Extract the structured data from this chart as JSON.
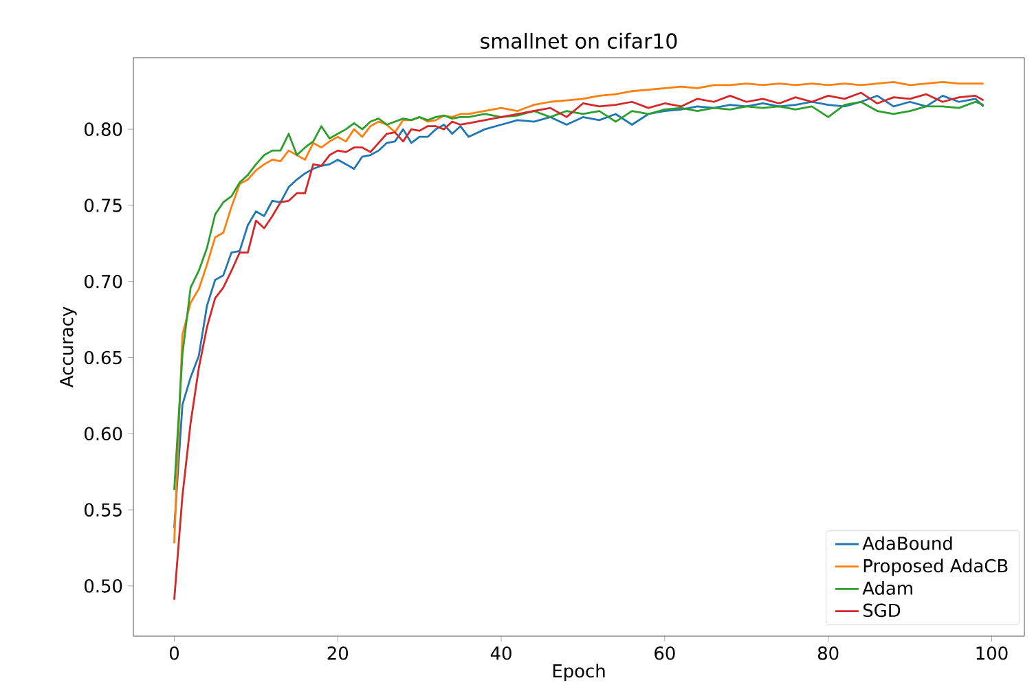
{
  "chart_data": {
    "type": "line",
    "title": "smallnet on cifar10",
    "xlabel": "Epoch",
    "ylabel": "Accuracy",
    "x": [
      0,
      1,
      2,
      3,
      4,
      5,
      6,
      7,
      8,
      9,
      10,
      11,
      12,
      13,
      14,
      15,
      16,
      17,
      18,
      19,
      20,
      21,
      22,
      23,
      24,
      25,
      26,
      27,
      28,
      29,
      30,
      31,
      32,
      33,
      34,
      35,
      36,
      38,
      40,
      42,
      44,
      46,
      48,
      50,
      52,
      54,
      56,
      58,
      60,
      62,
      64,
      66,
      68,
      70,
      72,
      74,
      76,
      78,
      80,
      82,
      84,
      86,
      88,
      90,
      92,
      94,
      96,
      98,
      99
    ],
    "series": [
      {
        "name": "AdaBound",
        "color": "#1f77b4",
        "values": [
          0.538,
          0.619,
          0.637,
          0.651,
          0.684,
          0.701,
          0.704,
          0.719,
          0.72,
          0.737,
          0.746,
          0.743,
          0.753,
          0.752,
          0.762,
          0.767,
          0.771,
          0.774,
          0.776,
          0.777,
          0.78,
          0.777,
          0.774,
          0.782,
          0.783,
          0.786,
          0.791,
          0.792,
          0.8,
          0.791,
          0.795,
          0.795,
          0.8,
          0.803,
          0.797,
          0.802,
          0.795,
          0.8,
          0.803,
          0.806,
          0.805,
          0.808,
          0.803,
          0.808,
          0.806,
          0.81,
          0.803,
          0.81,
          0.812,
          0.813,
          0.815,
          0.814,
          0.816,
          0.815,
          0.817,
          0.815,
          0.816,
          0.818,
          0.816,
          0.815,
          0.818,
          0.822,
          0.815,
          0.818,
          0.815,
          0.822,
          0.818,
          0.82,
          0.815
        ]
      },
      {
        "name": "Proposed AdaCB",
        "color": "#ff7f0e",
        "values": [
          0.528,
          0.665,
          0.686,
          0.695,
          0.711,
          0.729,
          0.732,
          0.749,
          0.764,
          0.767,
          0.773,
          0.777,
          0.78,
          0.779,
          0.786,
          0.783,
          0.78,
          0.791,
          0.788,
          0.792,
          0.795,
          0.792,
          0.8,
          0.795,
          0.802,
          0.805,
          0.803,
          0.798,
          0.806,
          0.806,
          0.808,
          0.805,
          0.806,
          0.809,
          0.808,
          0.81,
          0.81,
          0.812,
          0.814,
          0.812,
          0.816,
          0.818,
          0.819,
          0.82,
          0.822,
          0.823,
          0.825,
          0.826,
          0.827,
          0.828,
          0.827,
          0.829,
          0.829,
          0.83,
          0.829,
          0.83,
          0.829,
          0.83,
          0.829,
          0.83,
          0.829,
          0.83,
          0.831,
          0.829,
          0.83,
          0.831,
          0.83,
          0.83,
          0.83
        ]
      },
      {
        "name": "Adam",
        "color": "#2ca02c",
        "values": [
          0.563,
          0.652,
          0.696,
          0.707,
          0.722,
          0.744,
          0.752,
          0.756,
          0.765,
          0.77,
          0.777,
          0.783,
          0.786,
          0.786,
          0.797,
          0.783,
          0.788,
          0.792,
          0.802,
          0.794,
          0.797,
          0.8,
          0.804,
          0.8,
          0.805,
          0.807,
          0.803,
          0.805,
          0.807,
          0.806,
          0.808,
          0.806,
          0.808,
          0.809,
          0.807,
          0.808,
          0.808,
          0.81,
          0.808,
          0.809,
          0.812,
          0.808,
          0.812,
          0.81,
          0.812,
          0.805,
          0.812,
          0.81,
          0.813,
          0.814,
          0.812,
          0.814,
          0.813,
          0.815,
          0.814,
          0.815,
          0.813,
          0.815,
          0.808,
          0.816,
          0.818,
          0.812,
          0.81,
          0.812,
          0.815,
          0.815,
          0.814,
          0.818,
          0.816
        ]
      },
      {
        "name": "SGD",
        "color": "#d62728",
        "values": [
          0.491,
          0.559,
          0.607,
          0.643,
          0.67,
          0.689,
          0.696,
          0.707,
          0.719,
          0.719,
          0.74,
          0.735,
          0.743,
          0.752,
          0.753,
          0.758,
          0.758,
          0.777,
          0.776,
          0.783,
          0.786,
          0.785,
          0.788,
          0.788,
          0.785,
          0.791,
          0.797,
          0.798,
          0.792,
          0.8,
          0.799,
          0.802,
          0.802,
          0.8,
          0.805,
          0.803,
          0.804,
          0.806,
          0.808,
          0.81,
          0.812,
          0.814,
          0.808,
          0.817,
          0.815,
          0.816,
          0.818,
          0.814,
          0.817,
          0.815,
          0.82,
          0.818,
          0.822,
          0.818,
          0.82,
          0.817,
          0.821,
          0.818,
          0.822,
          0.82,
          0.824,
          0.817,
          0.821,
          0.82,
          0.823,
          0.818,
          0.821,
          0.822,
          0.819
        ]
      }
    ],
    "xlim": [
      -5,
      104
    ],
    "ylim": [
      0.467,
      0.847
    ],
    "xticks": [
      0,
      20,
      40,
      60,
      80,
      100
    ],
    "yticks": [
      {
        "value": 0.5,
        "label": "0.50"
      },
      {
        "value": 0.55,
        "label": "0.55"
      },
      {
        "value": 0.6,
        "label": "0.60"
      },
      {
        "value": 0.65,
        "label": "0.65"
      },
      {
        "value": 0.7,
        "label": "0.70"
      },
      {
        "value": 0.75,
        "label": "0.75"
      },
      {
        "value": 0.8,
        "label": "0.80"
      }
    ],
    "grid": false,
    "legend": "bottom right",
    "marker": "none",
    "line_style": "solid"
  }
}
